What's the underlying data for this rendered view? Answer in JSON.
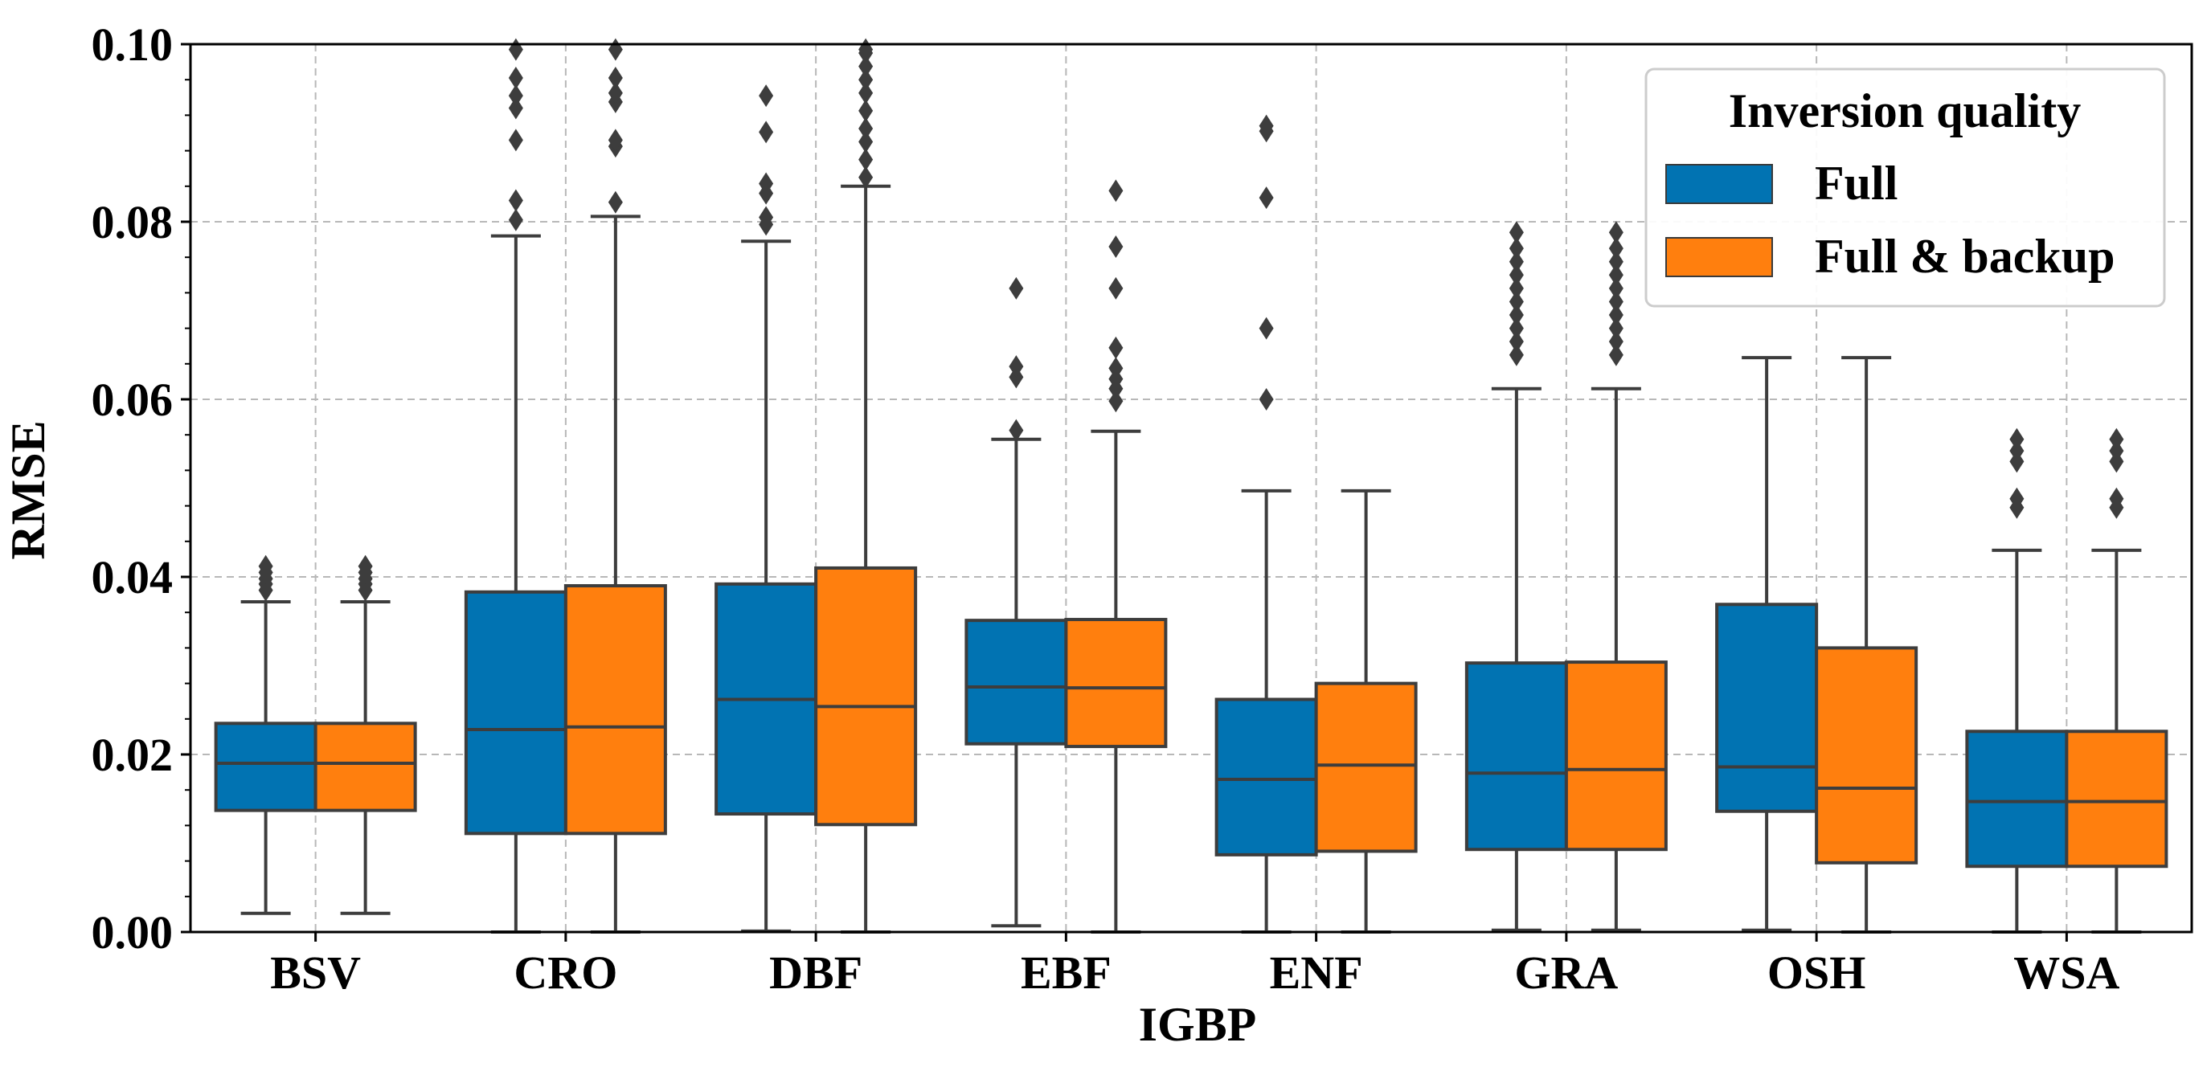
{
  "chart_data": {
    "type": "box",
    "title": "",
    "xlabel": "IGBP",
    "ylabel": "RMSE",
    "ylim": [
      0,
      0.1
    ],
    "yticks": [
      0,
      0.02,
      0.04,
      0.06,
      0.08,
      0.1
    ],
    "ytick_labels": [
      "0.00",
      "0.02",
      "0.04",
      "0.06",
      "0.08",
      "0.10"
    ],
    "categories": [
      "BSV",
      "CRO",
      "DBF",
      "EBF",
      "ENF",
      "GRA",
      "OSH",
      "WSA"
    ],
    "grid": true,
    "legend": {
      "title": "Inversion quality",
      "position": "top-right"
    },
    "series": [
      {
        "name": "Full",
        "color": "#0173b2",
        "boxes": [
          {
            "q1": 0.0137,
            "median": 0.019,
            "q3": 0.0235,
            "whisker_low": 0.0021,
            "whisker_high": 0.0372,
            "outliers": [
              0.0385,
              0.0392,
              0.0398,
              0.0405,
              0.0412
            ]
          },
          {
            "q1": 0.0111,
            "median": 0.0228,
            "q3": 0.0383,
            "whisker_low": 0.0,
            "whisker_high": 0.0784,
            "outliers": [
              0.0802,
              0.0824,
              0.0892,
              0.0928,
              0.0942,
              0.0962,
              0.0994
            ]
          },
          {
            "q1": 0.0133,
            "median": 0.0262,
            "q3": 0.0392,
            "whisker_low": 0.0001,
            "whisker_high": 0.0778,
            "outliers": [
              0.0797,
              0.0805,
              0.0832,
              0.0843,
              0.0901,
              0.0942
            ]
          },
          {
            "q1": 0.0212,
            "median": 0.0276,
            "q3": 0.0351,
            "whisker_low": 0.0007,
            "whisker_high": 0.0555,
            "outliers": [
              0.0565,
              0.0625,
              0.0637,
              0.0725
            ]
          },
          {
            "q1": 0.0087,
            "median": 0.0172,
            "q3": 0.0262,
            "whisker_low": 0.0,
            "whisker_high": 0.0497,
            "outliers": [
              0.06,
              0.068,
              0.0827,
              0.0902,
              0.0908
            ]
          },
          {
            "q1": 0.0093,
            "median": 0.0179,
            "q3": 0.0303,
            "whisker_low": 0.0002,
            "whisker_high": 0.0612,
            "outliers": [
              0.065,
              0.0665,
              0.068,
              0.0695,
              0.071,
              0.0725,
              0.074,
              0.0755,
              0.077,
              0.0788
            ]
          },
          {
            "q1": 0.0136,
            "median": 0.0186,
            "q3": 0.0369,
            "whisker_low": 0.0002,
            "whisker_high": 0.0647,
            "outliers": []
          },
          {
            "q1": 0.0074,
            "median": 0.0147,
            "q3": 0.0226,
            "whisker_low": 0.0,
            "whisker_high": 0.043,
            "outliers": [
              0.0478,
              0.0488,
              0.053,
              0.0542,
              0.0555
            ]
          }
        ]
      },
      {
        "name": "Full & backup",
        "color": "#ff7f0e",
        "boxes": [
          {
            "q1": 0.0137,
            "median": 0.019,
            "q3": 0.0235,
            "whisker_low": 0.0021,
            "whisker_high": 0.0372,
            "outliers": [
              0.0385,
              0.0392,
              0.0398,
              0.0405,
              0.0412
            ]
          },
          {
            "q1": 0.0111,
            "median": 0.0231,
            "q3": 0.039,
            "whisker_low": 0.0,
            "whisker_high": 0.0806,
            "outliers": [
              0.0822,
              0.0885,
              0.0892,
              0.0935,
              0.0945,
              0.0962,
              0.0994
            ]
          },
          {
            "q1": 0.0121,
            "median": 0.0254,
            "q3": 0.041,
            "whisker_low": 0.0,
            "whisker_high": 0.084,
            "outliers": [
              0.085,
              0.087,
              0.089,
              0.0905,
              0.0925,
              0.0945,
              0.096,
              0.0975,
              0.099,
              0.0994
            ]
          },
          {
            "q1": 0.0209,
            "median": 0.0275,
            "q3": 0.0352,
            "whisker_low": 0.0,
            "whisker_high": 0.0564,
            "outliers": [
              0.0598,
              0.0612,
              0.0623,
              0.0635,
              0.0658,
              0.0725,
              0.0772,
              0.0835
            ]
          },
          {
            "q1": 0.0091,
            "median": 0.0188,
            "q3": 0.028,
            "whisker_low": 0.0,
            "whisker_high": 0.0497,
            "outliers": []
          },
          {
            "q1": 0.0093,
            "median": 0.0183,
            "q3": 0.0304,
            "whisker_low": 0.0002,
            "whisker_high": 0.0612,
            "outliers": [
              0.065,
              0.0665,
              0.068,
              0.0695,
              0.071,
              0.0725,
              0.074,
              0.0755,
              0.077,
              0.0788
            ]
          },
          {
            "q1": 0.0078,
            "median": 0.0162,
            "q3": 0.032,
            "whisker_low": 0.0,
            "whisker_high": 0.0647,
            "outliers": []
          },
          {
            "q1": 0.0074,
            "median": 0.0147,
            "q3": 0.0226,
            "whisker_low": 0.0,
            "whisker_high": 0.043,
            "outliers": [
              0.0478,
              0.0488,
              0.053,
              0.0542,
              0.0555
            ]
          }
        ]
      }
    ]
  }
}
